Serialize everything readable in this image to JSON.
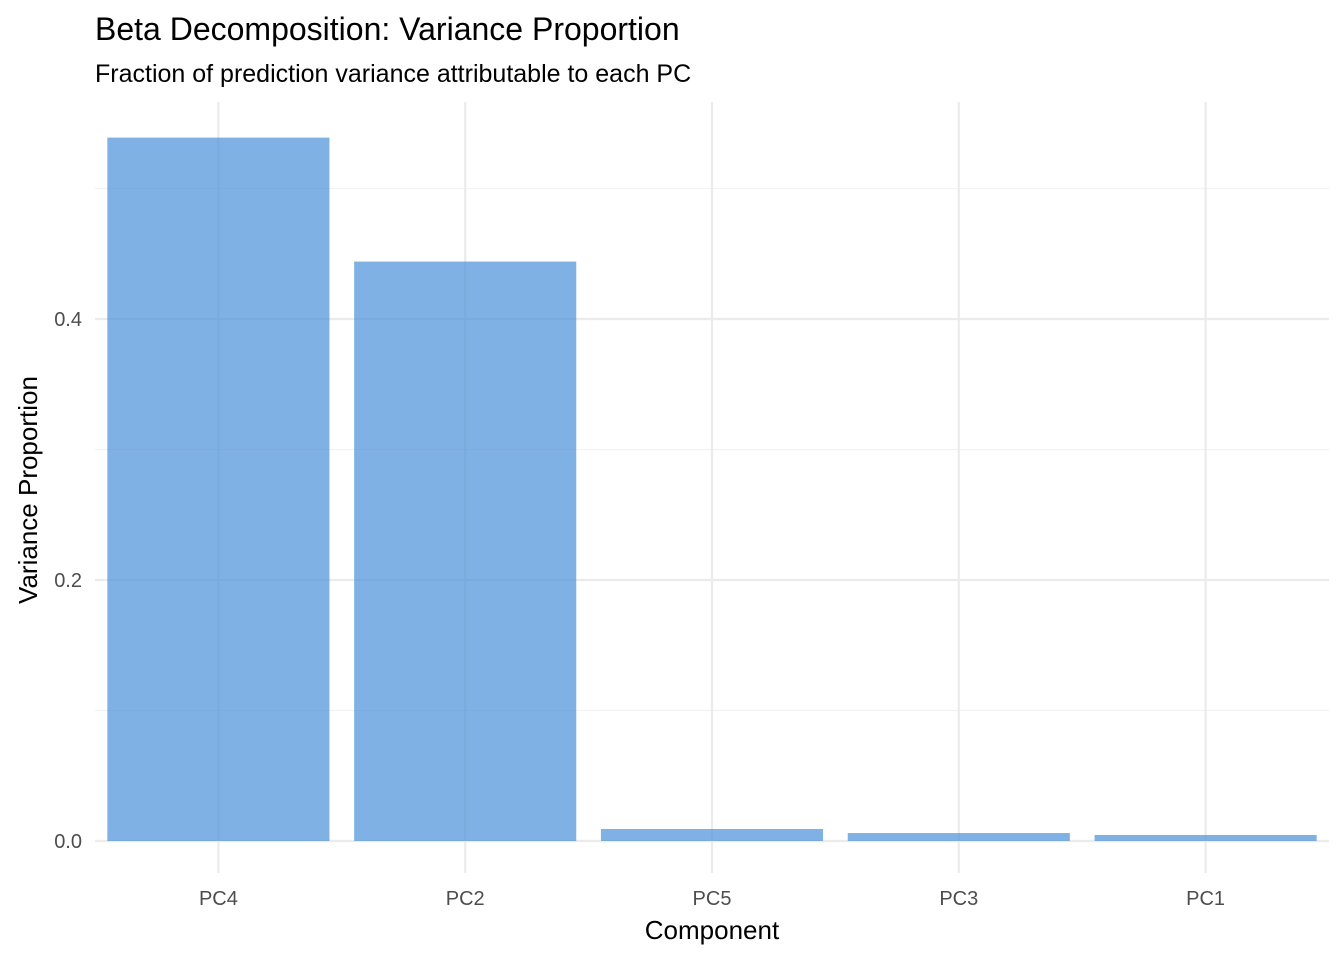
{
  "chart_data": {
    "type": "bar",
    "title": "Beta Decomposition: Variance Proportion",
    "subtitle": "Fraction of prediction variance attributable to each PC",
    "xlabel": "Component",
    "ylabel": "Variance Proportion",
    "categories": [
      "PC4",
      "PC2",
      "PC5",
      "PC3",
      "PC1"
    ],
    "values": [
      0.539,
      0.444,
      0.0092,
      0.0061,
      0.0046
    ],
    "ylim": [
      -0.025,
      0.565
    ],
    "yticks": [
      0.0,
      0.2,
      0.4
    ],
    "ytick_labels": [
      "0.0",
      "0.2",
      "0.4"
    ],
    "grid": true,
    "bar_color": "#4A90D9",
    "bar_opacity": 0.7
  }
}
